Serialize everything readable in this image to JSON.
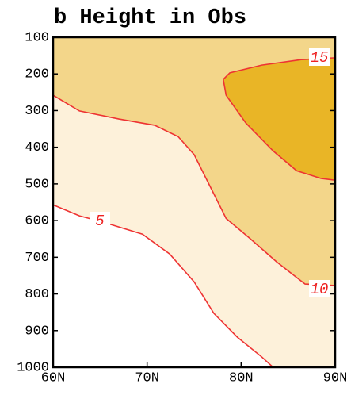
{
  "chart_data": {
    "type": "contour",
    "title": "b Height in Obs",
    "xlim": [
      60,
      90
    ],
    "xticks": [
      {
        "value": 60,
        "label": "60N"
      },
      {
        "value": 70,
        "label": "70N"
      },
      {
        "value": 80,
        "label": "80N"
      },
      {
        "value": 90,
        "label": "90N"
      }
    ],
    "ylim": [
      1000,
      100
    ],
    "yticks": [
      100,
      200,
      300,
      400,
      500,
      600,
      700,
      800,
      900,
      1000
    ],
    "line_color": "#ee3333",
    "contours": [
      {
        "level": 5,
        "color": "#fdf1da",
        "x": [
          60,
          62.8,
          65.3,
          69.5,
          72.4,
          75.0,
          77.1,
          79.6,
          82.2,
          83.4
        ],
        "y": [
          557,
          587,
          604,
          637,
          691,
          767,
          853,
          918,
          972,
          1000
        ]
      },
      {
        "level": 10,
        "color": "#f3d68a",
        "x": [
          60,
          62.8,
          67.0,
          70.8,
          73.3,
          75.0,
          76.7,
          78.4,
          80.9,
          83.8,
          86.8,
          90
        ],
        "y": [
          258,
          301,
          323,
          340,
          371,
          420,
          507,
          594,
          648,
          713,
          773,
          777
        ]
      },
      {
        "level": 15,
        "color": "#e9b526",
        "x": [
          90,
          86.4,
          82.2,
          78.8,
          78.1,
          78.4,
          80.5,
          83.4,
          85.9,
          88.5,
          90
        ],
        "y": [
          156,
          161,
          176,
          197,
          215,
          258,
          334,
          410,
          464,
          485,
          490
        ]
      }
    ]
  }
}
